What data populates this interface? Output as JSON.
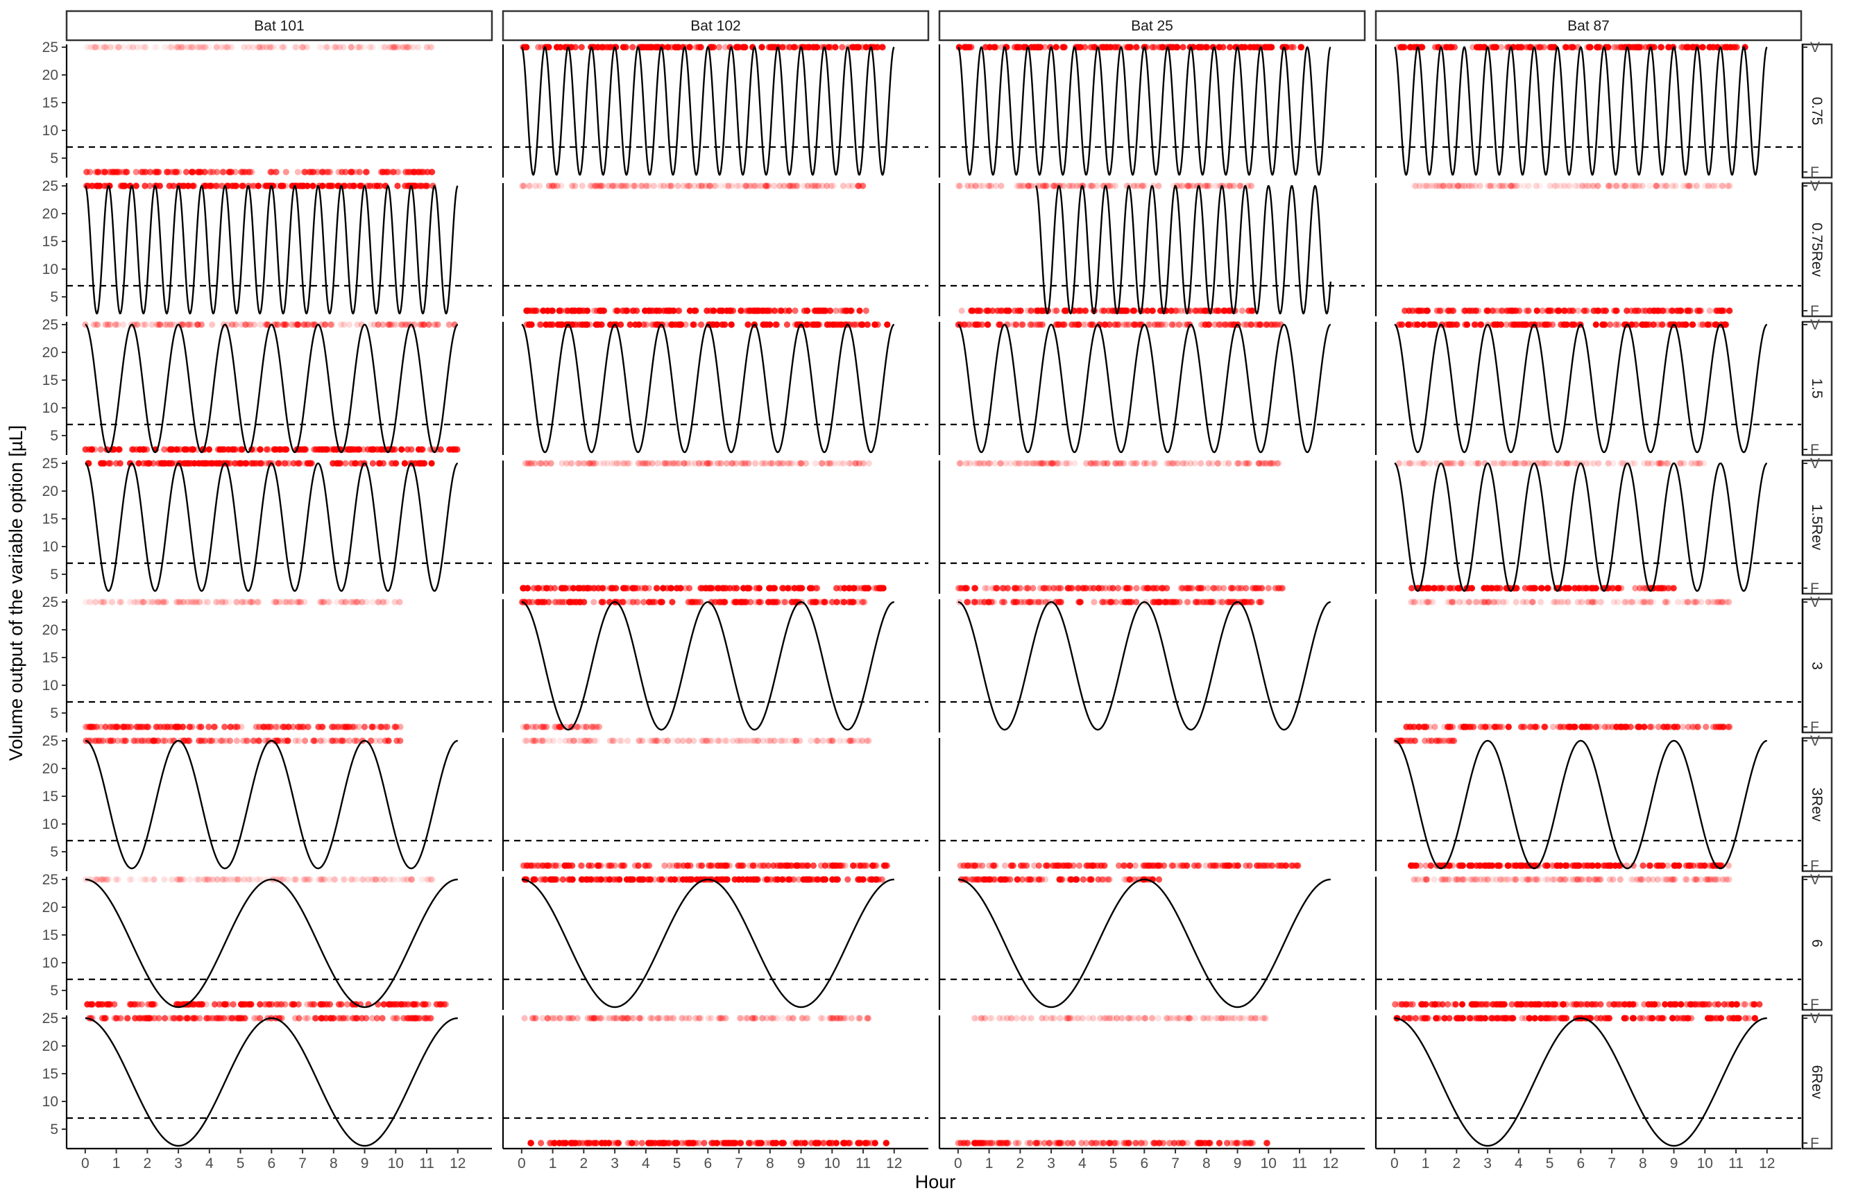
{
  "chart_data": {
    "type": "scatter",
    "xlabel": "Hour",
    "ylabel": "Volume output of the variable option [µL]",
    "columns": [
      "Bat 101",
      "Bat 102",
      "Bat 25",
      "Bat 87"
    ],
    "rows": [
      "0.75",
      "0.75Rev",
      "1.5",
      "1.5Rev",
      "3",
      "3Rev",
      "6",
      "6Rev"
    ],
    "xlim": [
      -0.6,
      13.1
    ],
    "ylim": [
      1.5,
      25.5
    ],
    "x_ticks": [
      "0",
      "1",
      "2",
      "3",
      "4",
      "5",
      "6",
      "7",
      "8",
      "9",
      "10",
      "11",
      "12"
    ],
    "y_ticks": [
      "5",
      "10",
      "15",
      "20",
      "25"
    ],
    "right_axis_labels": [
      "F",
      "V"
    ],
    "threshold_y": 7,
    "curve_range": [
      2,
      25
    ],
    "point_levels": {
      "fixed": 2.5,
      "variable": 25
    },
    "colors": {
      "points": "#ff0000",
      "curve": "#000000",
      "threshold": "#000000",
      "strip_border": "#333333"
    },
    "grid": false,
    "series": [
      {
        "column": "Bat 101",
        "row": "0.75",
        "curve": null,
        "points": [
          {
            "y": 25,
            "x": [
              0,
              11.2
            ],
            "alpha": 0.12
          },
          {
            "y": 2.5,
            "x": [
              0,
              11.3
            ],
            "alpha": 0.5
          }
        ]
      },
      {
        "column": "Bat 102",
        "row": "0.75",
        "curve": {
          "period": 0.75,
          "x": [
            0,
            12
          ],
          "start": "max"
        },
        "points": [
          {
            "y": 25,
            "x": [
              0,
              11.8
            ],
            "alpha": 0.85
          }
        ]
      },
      {
        "column": "Bat 25",
        "row": "0.75",
        "curve": {
          "period": 0.75,
          "x": [
            0,
            12
          ],
          "start": "max"
        },
        "points": [
          {
            "y": 25,
            "x": [
              0,
              11.2
            ],
            "alpha": 0.8
          }
        ]
      },
      {
        "column": "Bat 87",
        "row": "0.75",
        "curve": {
          "period": 0.75,
          "x": [
            0,
            12
          ],
          "start": "max"
        },
        "points": [
          {
            "y": 25,
            "x": [
              0,
              11.3
            ],
            "alpha": 0.8
          }
        ]
      },
      {
        "column": "Bat 101",
        "row": "0.75Rev",
        "curve": {
          "period": 0.75,
          "x": [
            0,
            12
          ],
          "start": "max"
        },
        "points": [
          {
            "y": 25,
            "x": [
              0,
              11.2
            ],
            "alpha": 0.8
          }
        ]
      },
      {
        "column": "Bat 102",
        "row": "0.75Rev",
        "curve": null,
        "points": [
          {
            "y": 25,
            "x": [
              0,
              11.2
            ],
            "alpha": 0.2
          },
          {
            "y": 2.5,
            "x": [
              0,
              11.2
            ],
            "alpha": 0.85
          }
        ]
      },
      {
        "column": "Bat 25",
        "row": "0.75Rev",
        "curve": {
          "period": 0.75,
          "x": [
            2.5,
            12
          ],
          "start": "max"
        },
        "points": [
          {
            "y": 25,
            "x": [
              0,
              9.5
            ],
            "alpha": 0.2
          },
          {
            "y": 2.5,
            "x": [
              0,
              9.5
            ],
            "alpha": 0.7
          }
        ]
      },
      {
        "column": "Bat 87",
        "row": "0.75Rev",
        "curve": null,
        "points": [
          {
            "y": 25,
            "x": [
              0.5,
              10.8
            ],
            "alpha": 0.15
          },
          {
            "y": 2.5,
            "x": [
              0.3,
              10.8
            ],
            "alpha": 0.6
          }
        ]
      },
      {
        "column": "Bat 101",
        "row": "1.5",
        "curve": {
          "period": 1.5,
          "x": [
            0,
            12
          ],
          "start": "max"
        },
        "points": [
          {
            "y": 25,
            "x": [
              0,
              12
            ],
            "alpha": 0.25
          },
          {
            "y": 2.5,
            "x": [
              0,
              12
            ],
            "alpha": 0.8
          }
        ]
      },
      {
        "column": "Bat 102",
        "row": "1.5",
        "curve": {
          "period": 1.5,
          "x": [
            0,
            12
          ],
          "start": "max"
        },
        "points": [
          {
            "y": 25,
            "x": [
              0,
              11.8
            ],
            "alpha": 0.85
          }
        ]
      },
      {
        "column": "Bat 25",
        "row": "1.5",
        "curve": {
          "period": 1.5,
          "x": [
            0,
            12
          ],
          "start": "max"
        },
        "points": [
          {
            "y": 25,
            "x": [
              0,
              10.5
            ],
            "alpha": 0.5
          }
        ]
      },
      {
        "column": "Bat 87",
        "row": "1.5",
        "curve": {
          "period": 1.5,
          "x": [
            0,
            12
          ],
          "start": "max"
        },
        "points": [
          {
            "y": 25,
            "x": [
              0,
              10.8
            ],
            "alpha": 0.75
          }
        ]
      },
      {
        "column": "Bat 101",
        "row": "1.5Rev",
        "curve": {
          "period": 1.5,
          "x": [
            0,
            12
          ],
          "start": "max"
        },
        "points": [
          {
            "y": 25,
            "x": [
              0,
              11.2
            ],
            "alpha": 0.7
          }
        ]
      },
      {
        "column": "Bat 102",
        "row": "1.5Rev",
        "curve": null,
        "points": [
          {
            "y": 25,
            "x": [
              0,
              11.3
            ],
            "alpha": 0.2
          },
          {
            "y": 2.5,
            "x": [
              0,
              11.8
            ],
            "alpha": 0.75
          }
        ]
      },
      {
        "column": "Bat 25",
        "row": "1.5Rev",
        "curve": null,
        "points": [
          {
            "y": 25,
            "x": [
              0,
              10.5
            ],
            "alpha": 0.2
          },
          {
            "y": 2.5,
            "x": [
              0,
              10.5
            ],
            "alpha": 0.5
          }
        ]
      },
      {
        "column": "Bat 87",
        "row": "1.5Rev",
        "curve": {
          "period": 1.5,
          "x": [
            0,
            12
          ],
          "start": "max"
        },
        "points": [
          {
            "y": 25,
            "x": [
              0,
              10
            ],
            "alpha": 0.15
          },
          {
            "y": 2.5,
            "x": [
              0.5,
              9
            ],
            "alpha": 0.8
          }
        ]
      },
      {
        "column": "Bat 101",
        "row": "3",
        "curve": null,
        "points": [
          {
            "y": 25,
            "x": [
              0,
              10.2
            ],
            "alpha": 0.15
          },
          {
            "y": 2.5,
            "x": [
              0,
              10.2
            ],
            "alpha": 0.5
          }
        ]
      },
      {
        "column": "Bat 102",
        "row": "3",
        "curve": {
          "period": 3,
          "x": [
            0,
            12
          ],
          "start": "max"
        },
        "points": [
          {
            "y": 25,
            "x": [
              0,
              11.2
            ],
            "alpha": 0.6
          },
          {
            "y": 2.5,
            "x": [
              0,
              2.5
            ],
            "alpha": 0.3
          }
        ]
      },
      {
        "column": "Bat 25",
        "row": "3",
        "curve": {
          "period": 3,
          "x": [
            0,
            12
          ],
          "start": "max"
        },
        "points": [
          {
            "y": 25,
            "x": [
              0,
              9.8
            ],
            "alpha": 0.5
          }
        ]
      },
      {
        "column": "Bat 87",
        "row": "3",
        "curve": null,
        "points": [
          {
            "y": 25,
            "x": [
              0.5,
              10.8
            ],
            "alpha": 0.15
          },
          {
            "y": 2.5,
            "x": [
              0.3,
              10.8
            ],
            "alpha": 0.6
          }
        ]
      },
      {
        "column": "Bat 101",
        "row": "3Rev",
        "curve": {
          "period": 3,
          "x": [
            0,
            12
          ],
          "start": "max"
        },
        "points": [
          {
            "y": 25,
            "x": [
              0,
              10.2
            ],
            "alpha": 0.4
          }
        ]
      },
      {
        "column": "Bat 102",
        "row": "3Rev",
        "curve": null,
        "points": [
          {
            "y": 25,
            "x": [
              0,
              11.2
            ],
            "alpha": 0.15
          },
          {
            "y": 2.5,
            "x": [
              0,
              11.8
            ],
            "alpha": 0.6
          }
        ]
      },
      {
        "column": "Bat 25",
        "row": "3Rev",
        "curve": null,
        "points": [
          {
            "y": 2.5,
            "x": [
              0,
              11.2
            ],
            "alpha": 0.5
          }
        ]
      },
      {
        "column": "Bat 87",
        "row": "3Rev",
        "curve": {
          "period": 3,
          "x": [
            0,
            12
          ],
          "start": "max"
        },
        "points": [
          {
            "y": 25,
            "x": [
              0,
              2
            ],
            "alpha": 0.4
          },
          {
            "y": 2.5,
            "x": [
              0.5,
              10.8
            ],
            "alpha": 0.8
          }
        ]
      },
      {
        "column": "Bat 101",
        "row": "6",
        "curve": {
          "period": 6,
          "x": [
            0,
            12
          ],
          "start": "max"
        },
        "points": [
          {
            "y": 25,
            "x": [
              0,
              11.2
            ],
            "alpha": 0.12
          },
          {
            "y": 2.5,
            "x": [
              0,
              11.8
            ],
            "alpha": 0.6
          }
        ]
      },
      {
        "column": "Bat 102",
        "row": "6",
        "curve": {
          "period": 6,
          "x": [
            0,
            12
          ],
          "start": "max"
        },
        "points": [
          {
            "y": 25,
            "x": [
              0,
              11.8
            ],
            "alpha": 0.85
          }
        ]
      },
      {
        "column": "Bat 25",
        "row": "6",
        "curve": {
          "period": 6,
          "x": [
            0,
            12
          ],
          "start": "max"
        },
        "points": [
          {
            "y": 25,
            "x": [
              0,
              6.5
            ],
            "alpha": 0.6
          }
        ]
      },
      {
        "column": "Bat 87",
        "row": "6",
        "curve": null,
        "points": [
          {
            "y": 25,
            "x": [
              0.5,
              10.8
            ],
            "alpha": 0.2
          },
          {
            "y": 2.5,
            "x": [
              0,
              11.8
            ],
            "alpha": 0.7
          }
        ]
      },
      {
        "column": "Bat 101",
        "row": "6Rev",
        "curve": {
          "period": 6,
          "x": [
            0,
            12
          ],
          "start": "max"
        },
        "points": [
          {
            "y": 25,
            "x": [
              0,
              11.2
            ],
            "alpha": 0.5
          }
        ]
      },
      {
        "column": "Bat 102",
        "row": "6Rev",
        "curve": null,
        "points": [
          {
            "y": 25,
            "x": [
              0,
              11.2
            ],
            "alpha": 0.2
          },
          {
            "y": 2.5,
            "x": [
              0,
              11.8
            ],
            "alpha": 0.8
          }
        ]
      },
      {
        "column": "Bat 25",
        "row": "6Rev",
        "curve": null,
        "points": [
          {
            "y": 25,
            "x": [
              0.5,
              10
            ],
            "alpha": 0.15
          },
          {
            "y": 2.5,
            "x": [
              0,
              10
            ],
            "alpha": 0.5
          }
        ]
      },
      {
        "column": "Bat 87",
        "row": "6Rev",
        "curve": {
          "period": 6,
          "x": [
            0,
            12
          ],
          "start": "max"
        },
        "points": [
          {
            "y": 25,
            "x": [
              0,
              11.8
            ],
            "alpha": 0.7
          }
        ]
      }
    ]
  }
}
